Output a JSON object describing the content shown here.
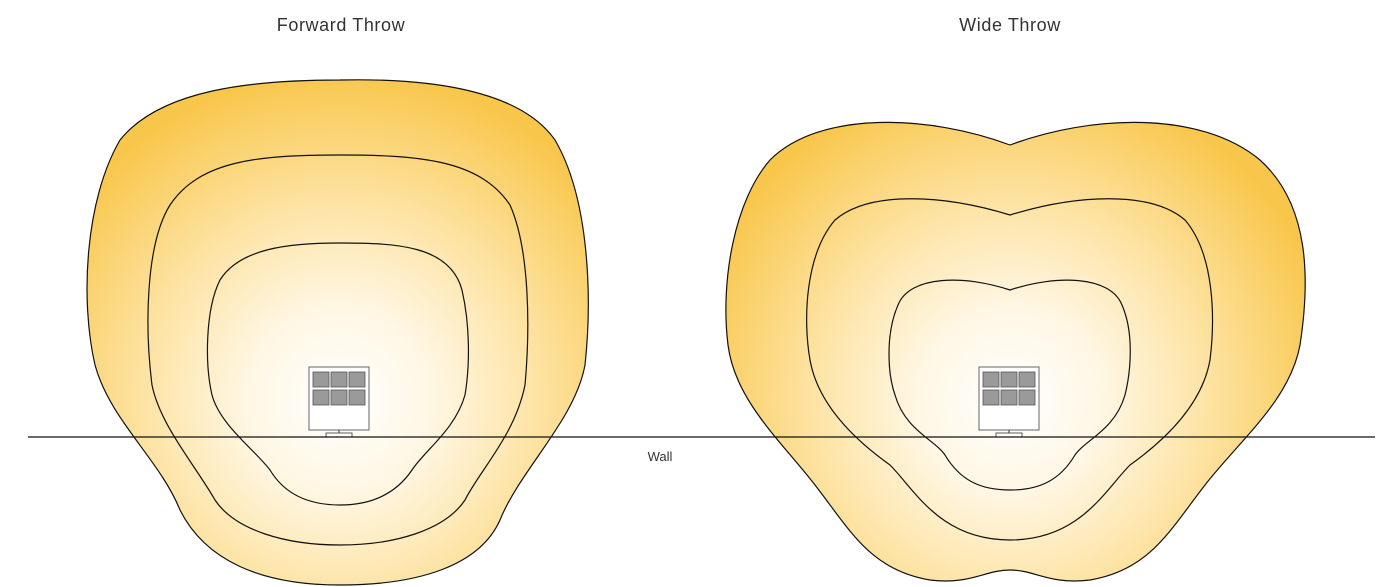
{
  "diagram": {
    "panels": [
      {
        "title": "Forward Throw"
      },
      {
        "title": "Wide Throw"
      }
    ],
    "wall_label": "Wall",
    "colors": {
      "glow_center": "#ffffff",
      "glow_edge": "#f8c64a",
      "contour_stroke": "#111111",
      "fixture_cell": "#9a9a9a",
      "fixture_cell_border": "#555555"
    }
  }
}
